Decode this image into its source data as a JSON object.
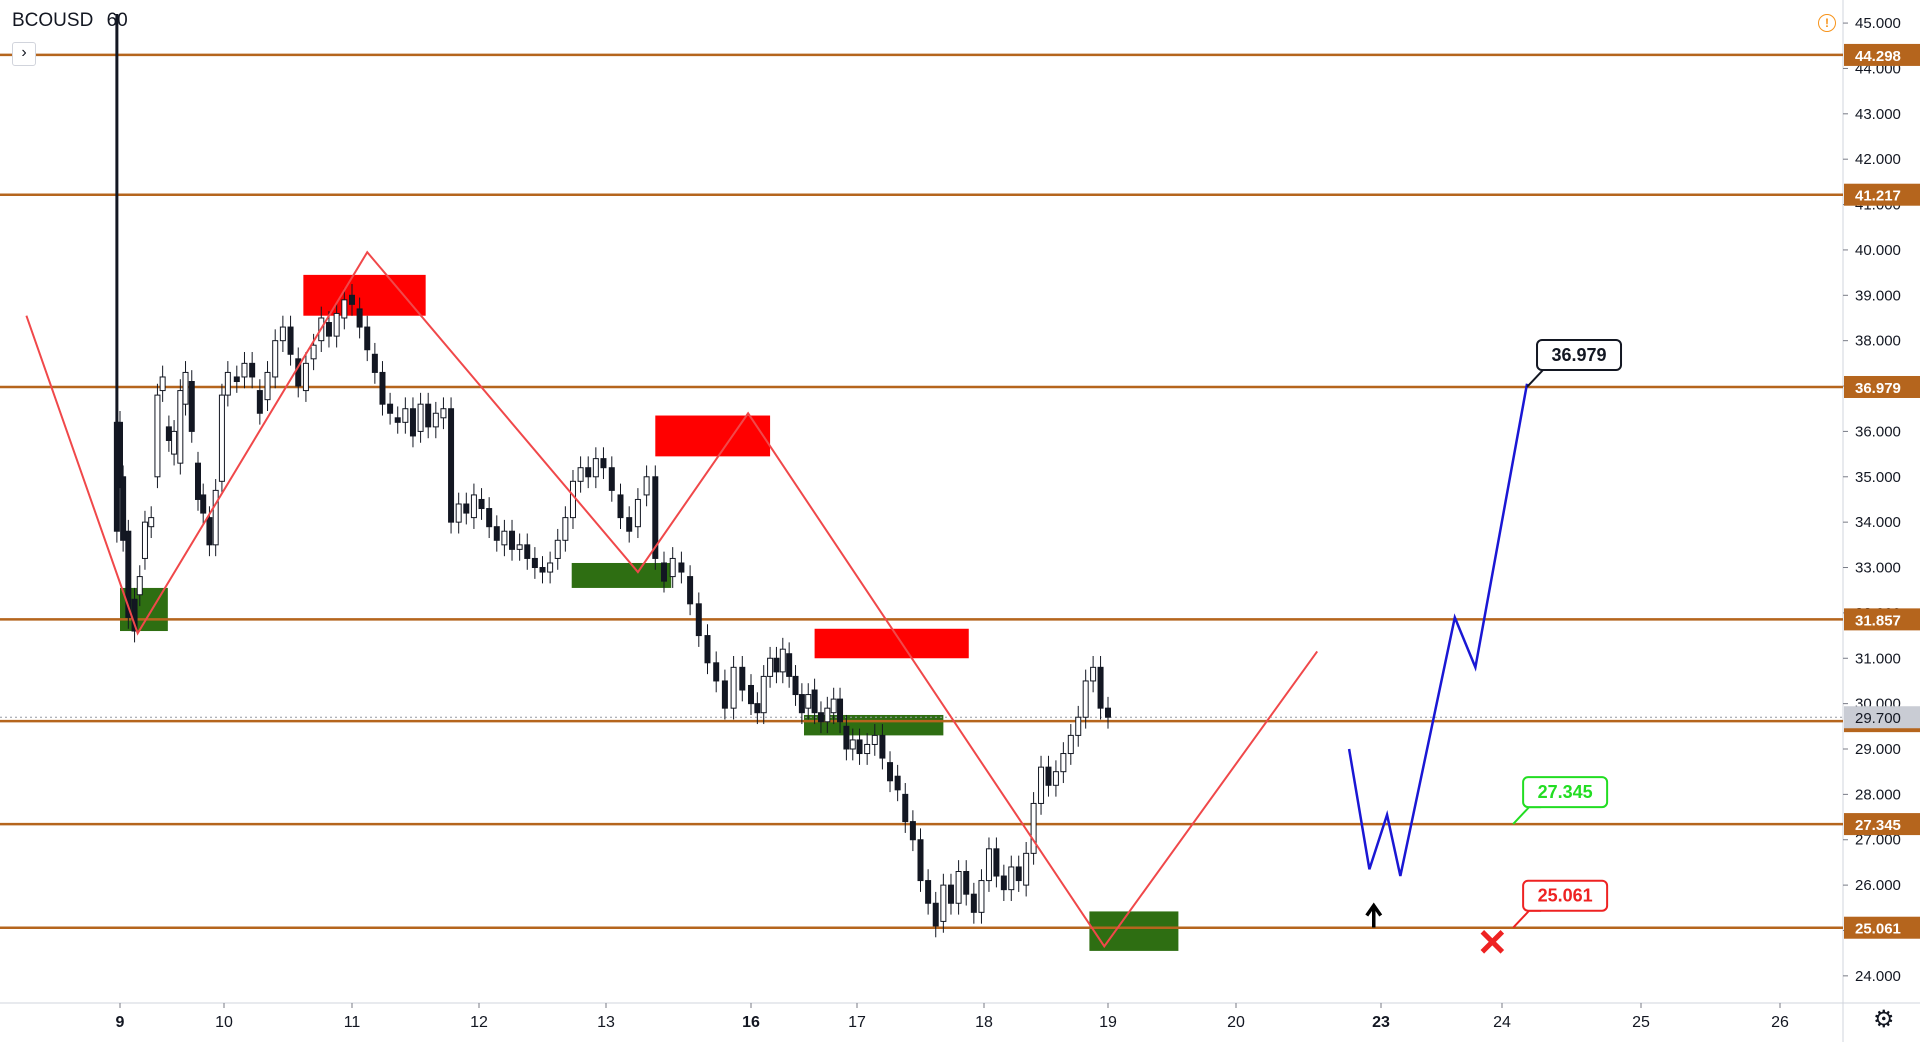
{
  "header": {
    "symbol": "BCOUSD",
    "interval": "60"
  },
  "colors": {
    "level_line": "#b5651d",
    "zigzag": "#f0484a",
    "forecast": "#1a17d4",
    "supply_zone": "#ff0000",
    "demand_zone": "#2e6e12",
    "candle": "#131722",
    "label_target": "#131722",
    "label_tp": "#22dd22",
    "label_sl": "#ee2222"
  },
  "chart_data": {
    "type": "candlestick",
    "symbol": "BCOUSD",
    "interval": "60",
    "ylim": [
      23.6,
      45.2
    ],
    "x_ticks": [
      {
        "label": "9",
        "pos": 0,
        "bold": true
      },
      {
        "label": "10",
        "pos": 1
      },
      {
        "label": "11",
        "pos": 2
      },
      {
        "label": "12",
        "pos": 3
      },
      {
        "label": "13",
        "pos": 4
      },
      {
        "label": "16",
        "pos": 5,
        "bold": true
      },
      {
        "label": "17",
        "pos": 6
      },
      {
        "label": "18",
        "pos": 7
      },
      {
        "label": "19",
        "pos": 8
      },
      {
        "label": "20",
        "pos": 9
      },
      {
        "label": "23",
        "pos": 10,
        "bold": true
      },
      {
        "label": "24",
        "pos": 11
      },
      {
        "label": "25",
        "pos": 12
      },
      {
        "label": "26",
        "pos": 13
      }
    ],
    "y_ticks": [
      "45.000",
      "44.000",
      "43.000",
      "42.000",
      "41.000",
      "40.000",
      "39.000",
      "38.000",
      "37.000",
      "36.000",
      "35.000",
      "34.000",
      "33.000",
      "32.000",
      "31.000",
      "30.000",
      "29.000",
      "28.000",
      "27.000",
      "26.000",
      "25.000",
      "24.000"
    ],
    "levels": [
      {
        "value": 44.298,
        "label": "44.298"
      },
      {
        "value": 41.217,
        "label": "41.217"
      },
      {
        "value": 36.979,
        "label": "36.979"
      },
      {
        "value": 31.857,
        "label": "31.857"
      },
      {
        "value": 29.614,
        "label": "29.614"
      },
      {
        "value": 27.345,
        "label": "27.345"
      },
      {
        "value": 25.061,
        "label": "25.061"
      }
    ],
    "last_price": {
      "value": 29.7,
      "label": "29.700"
    },
    "zones": [
      {
        "kind": "demand",
        "x0": 0.0,
        "x1": 0.46,
        "y0": 31.6,
        "y1": 32.55
      },
      {
        "kind": "supply",
        "x0": 1.62,
        "x1": 2.58,
        "y0": 38.55,
        "y1": 39.45
      },
      {
        "kind": "demand",
        "x0": 3.73,
        "x1": 4.45,
        "y0": 32.55,
        "y1": 33.1
      },
      {
        "kind": "supply",
        "x0": 4.34,
        "x1": 5.18,
        "y0": 35.45,
        "y1": 36.35
      },
      {
        "kind": "supply",
        "x0": 5.6,
        "x1": 6.88,
        "y0": 31.0,
        "y1": 31.65
      },
      {
        "kind": "demand",
        "x0": 5.5,
        "x1": 6.68,
        "y0": 29.3,
        "y1": 29.75
      },
      {
        "kind": "demand",
        "x0": 7.85,
        "x1": 8.55,
        "y0": 24.55,
        "y1": 25.42
      }
    ],
    "zigzag": [
      [
        -0.9,
        38.55
      ],
      [
        0.17,
        31.55
      ],
      [
        2.12,
        39.95
      ],
      [
        4.22,
        32.9
      ],
      [
        4.98,
        36.4
      ],
      [
        7.97,
        24.65
      ],
      [
        9.56,
        31.15
      ]
    ],
    "forecast": [
      [
        9.78,
        29.0
      ],
      [
        9.92,
        26.35
      ],
      [
        10.05,
        27.55
      ],
      [
        10.16,
        26.2
      ],
      [
        10.61,
        31.9
      ],
      [
        10.78,
        30.8
      ],
      [
        11.18,
        37.05
      ]
    ],
    "price_tags": [
      {
        "label": "36.979",
        "x": 11.18,
        "y": 36.979,
        "kind": "target"
      },
      {
        "label": "27.345",
        "x": 11.08,
        "y": 27.345,
        "kind": "tp"
      },
      {
        "label": "25.061",
        "x": 11.08,
        "y": 25.061,
        "kind": "sl"
      }
    ],
    "arrow": {
      "x": 9.95,
      "y": 25.55
    },
    "stop_marker": {
      "x": 10.92,
      "y": 24.75
    },
    "spike": {
      "x": -0.03,
      "high": 45.2,
      "low": 36.1
    },
    "candles": [
      [
        0.0,
        36.2,
        35.0
      ],
      [
        -0.03,
        36.2,
        33.8
      ],
      [
        0.03,
        35.0,
        33.6
      ],
      [
        0.08,
        33.8,
        31.9
      ],
      [
        0.14,
        32.3,
        31.6
      ],
      [
        0.19,
        32.4,
        32.8
      ],
      [
        0.24,
        33.2,
        34.0
      ],
      [
        0.3,
        33.9,
        34.1
      ],
      [
        0.36,
        35.0,
        36.8
      ],
      [
        0.41,
        36.9,
        37.2
      ],
      [
        0.47,
        36.1,
        35.8
      ],
      [
        0.52,
        35.5,
        36.0
      ],
      [
        0.58,
        35.3,
        36.9
      ],
      [
        0.63,
        36.6,
        37.3
      ],
      [
        0.69,
        37.1,
        36.0
      ],
      [
        0.75,
        35.3,
        34.5
      ],
      [
        0.8,
        34.6,
        34.2
      ],
      [
        0.86,
        34.1,
        33.5
      ],
      [
        0.92,
        33.5,
        34.7
      ],
      [
        0.98,
        34.9,
        36.8
      ],
      [
        1.03,
        36.8,
        37.3
      ],
      [
        1.1,
        37.2,
        37.1
      ],
      [
        1.16,
        37.2,
        37.5
      ],
      [
        1.22,
        37.5,
        37.2
      ],
      [
        1.28,
        36.9,
        36.4
      ],
      [
        1.34,
        36.7,
        37.3
      ],
      [
        1.4,
        37.2,
        38.0
      ],
      [
        1.46,
        38.0,
        38.3
      ],
      [
        1.52,
        38.3,
        37.7
      ],
      [
        1.58,
        37.6,
        37.0
      ],
      [
        1.64,
        36.9,
        37.5
      ],
      [
        1.7,
        37.6,
        37.9
      ],
      [
        1.76,
        38.0,
        38.5
      ],
      [
        1.82,
        38.4,
        38.1
      ],
      [
        1.88,
        38.1,
        38.6
      ],
      [
        1.94,
        38.5,
        38.9
      ],
      [
        2.0,
        39.0,
        38.8
      ],
      [
        2.06,
        38.7,
        38.3
      ],
      [
        2.12,
        38.3,
        37.8
      ],
      [
        2.18,
        37.7,
        37.3
      ],
      [
        2.24,
        37.3,
        36.6
      ],
      [
        2.3,
        36.6,
        36.4
      ],
      [
        2.36,
        36.3,
        36.2
      ],
      [
        2.42,
        36.2,
        36.5
      ],
      [
        2.48,
        36.5,
        35.9
      ],
      [
        2.54,
        36.0,
        36.6
      ],
      [
        2.6,
        36.6,
        36.1
      ],
      [
        2.66,
        36.1,
        36.4
      ],
      [
        2.72,
        36.3,
        36.5
      ],
      [
        2.78,
        36.5,
        34.0
      ],
      [
        2.84,
        34.0,
        34.4
      ],
      [
        2.9,
        34.4,
        34.2
      ],
      [
        2.96,
        34.1,
        34.6
      ],
      [
        3.02,
        34.5,
        34.3
      ],
      [
        3.08,
        34.3,
        33.9
      ],
      [
        3.14,
        33.9,
        33.6
      ],
      [
        3.2,
        33.5,
        33.8
      ],
      [
        3.26,
        33.8,
        33.4
      ],
      [
        3.32,
        33.4,
        33.5
      ],
      [
        3.38,
        33.5,
        33.2
      ],
      [
        3.44,
        33.2,
        33.0
      ],
      [
        3.5,
        33.0,
        32.9
      ],
      [
        3.56,
        32.9,
        33.1
      ],
      [
        3.62,
        33.2,
        33.6
      ],
      [
        3.68,
        33.6,
        34.1
      ],
      [
        3.74,
        34.1,
        34.9
      ],
      [
        3.8,
        34.9,
        35.2
      ],
      [
        3.86,
        35.2,
        35.0
      ],
      [
        3.92,
        35.0,
        35.4
      ],
      [
        3.98,
        35.4,
        35.2
      ],
      [
        4.04,
        35.2,
        34.7
      ],
      [
        4.1,
        34.6,
        34.1
      ],
      [
        4.16,
        34.1,
        33.8
      ],
      [
        4.22,
        33.9,
        34.5
      ],
      [
        4.28,
        34.6,
        35.0
      ],
      [
        4.34,
        35.0,
        33.2
      ],
      [
        4.4,
        33.1,
        32.7
      ],
      [
        4.46,
        32.8,
        33.2
      ],
      [
        4.52,
        33.1,
        32.9
      ],
      [
        4.58,
        32.8,
        32.2
      ],
      [
        4.64,
        32.2,
        31.5
      ],
      [
        4.7,
        31.5,
        30.9
      ],
      [
        4.76,
        30.9,
        30.5
      ],
      [
        4.82,
        30.5,
        29.9
      ],
      [
        4.88,
        29.9,
        30.8
      ],
      [
        4.94,
        30.8,
        30.3
      ],
      [
        5.0,
        30.4,
        30.0
      ],
      [
        5.06,
        30.0,
        29.8
      ],
      [
        5.12,
        29.8,
        30.6
      ],
      [
        5.18,
        30.6,
        31.0
      ],
      [
        5.24,
        31.0,
        30.7
      ],
      [
        5.3,
        30.7,
        31.2
      ],
      [
        5.36,
        31.1,
        30.6
      ],
      [
        5.42,
        30.6,
        30.2
      ],
      [
        5.48,
        30.2,
        29.8
      ],
      [
        5.54,
        29.9,
        30.2
      ],
      [
        5.6,
        30.3,
        29.8
      ],
      [
        5.66,
        29.8,
        29.6
      ],
      [
        5.72,
        29.6,
        29.9
      ],
      [
        5.78,
        29.8,
        30.1
      ],
      [
        5.84,
        30.1,
        29.6
      ],
      [
        5.9,
        29.5,
        29.0
      ],
      [
        5.96,
        29.0,
        29.2
      ],
      [
        6.02,
        29.2,
        28.9
      ],
      [
        6.08,
        28.9,
        29.1
      ],
      [
        6.14,
        29.1,
        29.3
      ],
      [
        6.2,
        29.3,
        28.8
      ],
      [
        6.26,
        28.7,
        28.3
      ],
      [
        6.32,
        28.4,
        28.1
      ],
      [
        6.38,
        28.0,
        27.4
      ],
      [
        6.44,
        27.4,
        27.0
      ],
      [
        6.5,
        27.0,
        26.1
      ],
      [
        6.56,
        26.1,
        25.6
      ],
      [
        6.62,
        25.6,
        25.1
      ],
      [
        6.68,
        25.2,
        26.0
      ],
      [
        6.74,
        26.0,
        25.6
      ],
      [
        6.8,
        25.6,
        26.3
      ],
      [
        6.86,
        26.3,
        25.8
      ],
      [
        6.92,
        25.8,
        25.4
      ],
      [
        6.98,
        25.4,
        26.1
      ],
      [
        7.04,
        26.1,
        26.8
      ],
      [
        7.1,
        26.8,
        26.2
      ],
      [
        7.16,
        26.2,
        25.9
      ],
      [
        7.22,
        25.9,
        26.4
      ],
      [
        7.28,
        26.4,
        26.1
      ],
      [
        7.34,
        26.0,
        26.7
      ],
      [
        7.4,
        26.7,
        27.8
      ],
      [
        7.46,
        27.8,
        28.6
      ],
      [
        7.52,
        28.6,
        28.2
      ],
      [
        7.58,
        28.2,
        28.5
      ],
      [
        7.64,
        28.5,
        28.9
      ],
      [
        7.7,
        28.9,
        29.3
      ],
      [
        7.76,
        29.3,
        29.7
      ],
      [
        7.82,
        29.7,
        30.5
      ],
      [
        7.88,
        30.5,
        30.8
      ],
      [
        7.94,
        30.8,
        29.9
      ],
      [
        8.0,
        29.9,
        29.7
      ]
    ]
  }
}
